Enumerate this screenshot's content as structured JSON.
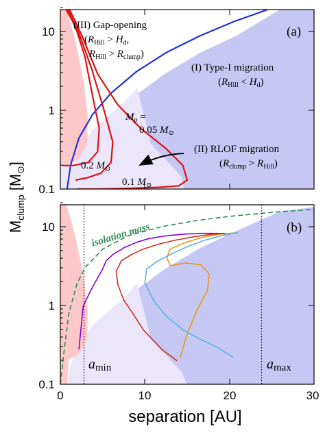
{
  "chart_data": [
    {
      "type": "line",
      "panel_label": "(a)",
      "xlim": [
        0,
        30
      ],
      "ylim": [
        0.1,
        20
      ],
      "yscale": "log",
      "ylabel": "M_clump [M_⊙]",
      "yticks": [
        "0.1",
        "1",
        "10"
      ],
      "regions": [
        {
          "name": "(III) Gap-opening",
          "conditions": [
            "(R_Hill > H_d,",
            "R_Hill > R_clump)"
          ],
          "color": "#ffc8c8"
        },
        {
          "name": "(I)  Type-I migration",
          "conditions": [
            "(R_Hill < H_d)"
          ],
          "color": "#c8c8f5"
        },
        {
          "name": "(II) RLOF migration",
          "conditions": [
            "(R_clump > R_Hill)"
          ],
          "color": "#ece6fb"
        }
      ],
      "series": [
        {
          "name": "blue boundary",
          "color": "#1f2fe0",
          "x": [
            0.8,
            1.2,
            2.2,
            3.8,
            6.0,
            9.0,
            12.5,
            16.5,
            20.5,
            24.5
          ],
          "y": [
            0.1,
            0.2,
            0.45,
            0.9,
            1.7,
            3.2,
            5.6,
            9.2,
            14.0,
            20.0
          ]
        },
        {
          "name": "0.2 M_⊙",
          "color": "#e01010",
          "x": [
            0.7,
            1.8,
            2.9,
            3.9,
            4.6,
            4.4,
            3.3,
            1.5,
            0.2
          ],
          "y": [
            20,
            12,
            5.0,
            1.4,
            0.6,
            0.3,
            0.22,
            0.2,
            0.2
          ]
        },
        {
          "name": "0.05 M_⊙",
          "color": "#e01010",
          "x": [
            0.9,
            2.2,
            3.7,
            5.2,
            6.2,
            6.0,
            4.8,
            3.2,
            1.8
          ],
          "y": [
            20,
            10,
            3.5,
            1.0,
            0.4,
            0.22,
            0.16,
            0.14,
            0.13
          ]
        },
        {
          "name": "0.1 M_⊙",
          "color": "#e01010",
          "x": [
            1.1,
            2.6,
            4.4,
            6.8,
            9.5,
            12.5,
            14.5,
            15.0,
            14.0,
            11.5,
            8.0,
            4.5,
            2.0
          ],
          "y": [
            20,
            9.0,
            3.0,
            1.2,
            0.6,
            0.33,
            0.2,
            0.13,
            0.11,
            0.105,
            0.102,
            0.1,
            0.1
          ]
        }
      ],
      "annotations": [
        {
          "lines": [
            "M_p =",
            "0.05 M_⊙"
          ]
        },
        {
          "lines": [
            "0.2 M_⊙"
          ]
        },
        {
          "lines": [
            "0.1 M_⊙"
          ]
        }
      ],
      "arrow": {
        "from": [
          15.5,
          0.36
        ],
        "to": [
          9.5,
          0.2
        ]
      }
    },
    {
      "type": "line",
      "panel_label": "(b)",
      "xlim": [
        0,
        30
      ],
      "ylim": [
        0.1,
        20
      ],
      "yscale": "log",
      "xlabel": "separation [AU]",
      "ylabel": "M_clump [M_⊙]",
      "xticks": [
        "0",
        "10",
        "20",
        "30"
      ],
      "yticks": [
        "0.1",
        "1",
        "10"
      ],
      "vlines": [
        {
          "x": 2.8,
          "label": "a_min"
        },
        {
          "x": 23.8,
          "label": "a_max"
        }
      ],
      "series": [
        {
          "name": "isolation mass",
          "color": "#2e8b57",
          "dashed": true,
          "x": [
            0.0,
            0.5,
            1.0,
            2.0,
            3.0,
            5.0,
            8.0,
            12.0,
            16.0,
            20.0,
            25.0,
            30.0
          ],
          "y": [
            0.1,
            0.3,
            0.8,
            2.0,
            3.2,
            5.4,
            8.0,
            10.5,
            12.5,
            14.2,
            16.0,
            17.5
          ]
        },
        {
          "name": "purple",
          "color": "#8b00d4",
          "x": [
            2.2,
            2.7,
            3.6,
            4.4,
            5.0,
            5.4,
            6.2,
            7.5,
            9.0,
            10.5,
            12.5,
            14.5,
            16.5,
            18.5,
            19.5
          ],
          "y": [
            0.28,
            1.0,
            1.6,
            2.3,
            3.0,
            3.8,
            4.6,
            5.6,
            6.6,
            7.4,
            8.0,
            8.4,
            8.6,
            8.6,
            8.5
          ]
        },
        {
          "name": "orange",
          "color": "#e69a12",
          "x": [
            14.2,
            15.0,
            16.2,
            17.4,
            17.6,
            16.6,
            14.8,
            13.0,
            12.6,
            13.0,
            14.5,
            16.5,
            18.5,
            20.0,
            20.5
          ],
          "y": [
            0.22,
            0.45,
            0.9,
            1.6,
            2.6,
            3.4,
            3.6,
            3.3,
            4.2,
            5.4,
            6.4,
            7.5,
            8.3,
            8.6,
            8.7
          ]
        },
        {
          "name": "red",
          "color": "#d62a1a",
          "x": [
            13.8,
            12.0,
            9.8,
            8.6,
            7.5,
            6.8,
            6.6,
            7.2,
            8.4,
            9.8,
            11.5,
            13.5,
            15.8,
            18.0,
            19.5
          ],
          "y": [
            0.2,
            0.28,
            0.5,
            0.8,
            1.2,
            1.9,
            2.8,
            3.8,
            4.6,
            5.4,
            6.2,
            7.0,
            7.8,
            8.4,
            8.6
          ]
        },
        {
          "name": "sky blue",
          "color": "#56b4e9",
          "x": [
            20.5,
            18.5,
            16.5,
            14.5,
            12.5,
            11.0,
            10.0,
            10.2,
            11.5,
            13.0,
            15.0,
            17.0,
            19.0,
            20.5,
            21.0
          ],
          "y": [
            0.22,
            0.3,
            0.38,
            0.5,
            0.75,
            1.2,
            2.0,
            3.0,
            3.8,
            4.6,
            5.8,
            7.0,
            8.0,
            8.6,
            8.8
          ]
        }
      ],
      "annotations": [
        {
          "text": "isolation mass"
        }
      ]
    }
  ],
  "ylabel_parts": {
    "main": "M",
    "sub": "clump",
    "unit_open": " [M",
    "unit_sub": "⊙",
    "unit_close": "]"
  },
  "xlabel_text": "separation [AU]",
  "panel_a_text": {
    "label": "(a)",
    "gap_title": "(III) Gap-opening",
    "gap_cond1_open": "(",
    "gap_cond1_R": "R",
    "gap_cond1_Rsub": "Hill",
    "gap_cond1_gt": " > ",
    "gap_cond1_H": "H",
    "gap_cond1_Hsub": "d",
    "gap_cond1_close": ",",
    "gap_cond2_R": "R",
    "gap_cond2_Rsub": "Hill",
    "gap_cond2_gt": " > ",
    "gap_cond2_R2": "R",
    "gap_cond2_R2sub": "clump",
    "gap_cond2_close": ")",
    "type1_title": "(I)  Type-I migration",
    "type1_open": "(",
    "type1_R": "R",
    "type1_Rsub": "Hill",
    "type1_lt": " < ",
    "type1_H": "H",
    "type1_Hsub": "d",
    "type1_close": ")",
    "rlof_title": "(II) RLOF migration",
    "rlof_open": "(",
    "rlof_R": "R",
    "rlof_Rsub": "clump",
    "rlof_gt": " > ",
    "rlof_R2": "R",
    "rlof_R2sub": "Hill",
    "rlof_close": ")",
    "mp_M": "M",
    "mp_sub": "p",
    "mp_eq": " =",
    "mp_val": "0.05 ",
    "mp_unit": "M",
    "mp_unit_sub": "⊙",
    "m02_val": "0.2 ",
    "m02_unit": "M",
    "m02_sub": "⊙",
    "m01_val": "0.1 ",
    "m01_unit": "M",
    "m01_sub": "⊙"
  },
  "panel_b_text": {
    "label": "(b)",
    "iso": "isolation mass",
    "amin_a": "a",
    "amin_sub": "min",
    "amax_a": "a",
    "amax_sub": "max"
  }
}
